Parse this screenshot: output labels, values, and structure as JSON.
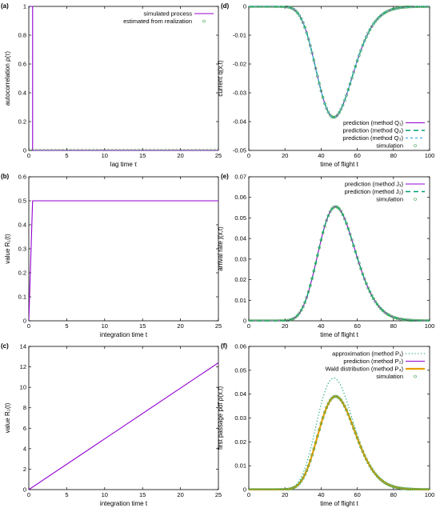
{
  "figure": {
    "colors": {
      "purple": "#9400d3",
      "green": "#009e73",
      "cyan": "#56b4e9",
      "orange": "#e69f00",
      "marker": "#3fa050"
    }
  },
  "chart_data": [
    {
      "id": "a",
      "panel_label": "(a)",
      "type": "line",
      "xlabel": "lag time τ",
      "ylabel": "autocorrelation ρ(τ)",
      "xlim": [
        0,
        25
      ],
      "ylim": [
        0,
        1
      ],
      "xticks": [
        0,
        5,
        10,
        15,
        20,
        25
      ],
      "yticks": [
        0,
        0.2,
        0.4,
        0.6,
        0.8,
        1
      ],
      "legend": "top-right",
      "series": [
        {
          "name": "simulated process",
          "style": "line",
          "color": "#9400d3",
          "x": [
            0,
            0.5,
            0.5,
            25
          ],
          "y": [
            1,
            1,
            0,
            0
          ]
        },
        {
          "name": "estimated from realization",
          "style": "markers",
          "color": "#3fa050",
          "x": [
            0,
            0.5,
            1,
            1.5,
            2,
            2.5,
            3,
            3.5,
            4,
            4.5,
            5,
            5.5,
            6,
            6.5,
            7,
            7.5,
            8,
            8.5,
            9,
            9.5,
            10,
            10.5,
            11,
            11.5,
            12,
            12.5,
            13,
            13.5,
            14,
            14.5,
            15,
            15.5,
            16,
            16.5,
            17,
            17.5,
            18,
            18.5,
            19,
            19.5,
            20,
            20.5,
            21,
            21.5,
            22,
            22.5,
            23,
            23.5,
            24,
            24.5,
            25
          ],
          "y": [
            1,
            0,
            0,
            0,
            0,
            0,
            0,
            0,
            0,
            0,
            0,
            0,
            0,
            0,
            0,
            0,
            0,
            0,
            0,
            0,
            0,
            0,
            0,
            0,
            0,
            0,
            0,
            0,
            0,
            0,
            0,
            0,
            0,
            0,
            0,
            0,
            0,
            0,
            0,
            0,
            0,
            0,
            0,
            0,
            0,
            0,
            0,
            0,
            0,
            0,
            0
          ]
        }
      ]
    },
    {
      "id": "b",
      "panel_label": "(b)",
      "type": "line",
      "xlabel": "integration time t",
      "ylabel": "value R₁(t)",
      "xlim": [
        0,
        25
      ],
      "ylim": [
        0,
        0.6
      ],
      "xticks": [
        0,
        5,
        10,
        15,
        20,
        25
      ],
      "yticks": [
        0,
        0.1,
        0.2,
        0.3,
        0.4,
        0.5,
        0.6
      ],
      "series": [
        {
          "style": "line",
          "color": "#9400d3",
          "x": [
            0,
            0.5,
            25
          ],
          "y": [
            0,
            0.5,
            0.5
          ]
        }
      ]
    },
    {
      "id": "c",
      "panel_label": "(c)",
      "type": "line",
      "xlabel": "integration time t",
      "ylabel": "value R₂(t)",
      "xlim": [
        0,
        25
      ],
      "ylim": [
        0,
        14
      ],
      "xticks": [
        0,
        5,
        10,
        15,
        20,
        25
      ],
      "yticks": [
        0,
        2,
        4,
        6,
        8,
        10,
        12,
        14
      ],
      "series": [
        {
          "style": "line",
          "color": "#9400d3",
          "x": [
            0,
            25
          ],
          "y": [
            0,
            12.4
          ]
        }
      ]
    },
    {
      "id": "d",
      "panel_label": "(d)",
      "type": "line",
      "xlabel": "time of flight t",
      "ylabel": "current q(x,t)",
      "xlim": [
        0,
        100
      ],
      "ylim": [
        -0.05,
        0
      ],
      "xticks": [
        0,
        20,
        40,
        60,
        80,
        100
      ],
      "yticks": [
        -0.05,
        -0.04,
        -0.03,
        -0.02,
        -0.01,
        0
      ],
      "legend": "bottom-right",
      "curve": {
        "kind": "current",
        "amplitude": -0.0385,
        "peak": 47
      },
      "series": [
        {
          "name": "prediction (method Q₁)",
          "style": "line",
          "color": "#9400d3"
        },
        {
          "name": "prediction (method Q₂)",
          "style": "dash",
          "color": "#009e73"
        },
        {
          "name": "prediction (method Q₃)",
          "style": "dash2",
          "color": "#56b4e9"
        },
        {
          "name": "simulation",
          "style": "markers",
          "color": "#3fa050"
        }
      ]
    },
    {
      "id": "e",
      "panel_label": "(e)",
      "type": "line",
      "xlabel": "time of flight t",
      "ylabel": "arrival rate j(x,t)",
      "xlim": [
        0,
        100
      ],
      "ylim": [
        0,
        0.07
      ],
      "xticks": [
        0,
        20,
        40,
        60,
        80,
        100
      ],
      "yticks": [
        0,
        0.01,
        0.02,
        0.03,
        0.04,
        0.05,
        0.06,
        0.07
      ],
      "legend": "top-right",
      "curve": {
        "kind": "rate",
        "amplitude": 0.0555,
        "peak": 48
      },
      "series": [
        {
          "name": "prediction (method J₁)",
          "style": "line",
          "color": "#9400d3"
        },
        {
          "name": "prediction (method J₂)",
          "style": "dash",
          "color": "#009e73"
        },
        {
          "name": "simulation",
          "style": "markers",
          "color": "#3fa050"
        }
      ]
    },
    {
      "id": "f",
      "panel_label": "(f)",
      "type": "line",
      "xlabel": "time of flight t",
      "ylabel": "first passage pdf ρ(x,t)",
      "xlim": [
        0,
        100
      ],
      "ylim": [
        0,
        0.06
      ],
      "xticks": [
        0,
        20,
        40,
        60,
        80,
        100
      ],
      "yticks": [
        0,
        0.01,
        0.02,
        0.03,
        0.04,
        0.05,
        0.06
      ],
      "legend": "top-right",
      "series": [
        {
          "name": "approximation (method P₁)",
          "style": "dot",
          "color": "#009e73",
          "curve": {
            "kind": "pdf",
            "amplitude": 0.0468,
            "peak": 47
          }
        },
        {
          "name": "prediction (method P₂)",
          "style": "line",
          "color": "#9400d3",
          "curve": {
            "kind": "pdf",
            "amplitude": 0.0392,
            "peak": 48
          }
        },
        {
          "name": "Wald distribution (method P₃)",
          "style": "thick",
          "color": "#e69f00",
          "curve": {
            "kind": "pdf",
            "amplitude": 0.039,
            "peak": 48
          }
        },
        {
          "name": "simulation",
          "style": "markers",
          "color": "#3fa050",
          "curve": {
            "kind": "pdf",
            "amplitude": 0.0391,
            "peak": 48
          }
        }
      ]
    }
  ]
}
